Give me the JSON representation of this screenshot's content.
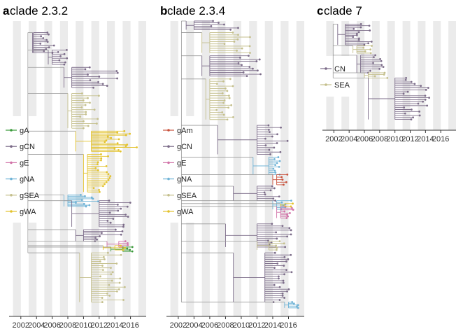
{
  "colors": {
    "gA": "#3a9a3a",
    "gAm": "#c9523c",
    "gCN": "#7b6b88",
    "gE": "#d173a8",
    "gNA": "#6fb3d6",
    "gSEA": "#c4bf8c",
    "gWA": "#e3c22c",
    "CN": "#7b6b88",
    "SEA": "#c4bf8c",
    "band": "#ebebeb",
    "stem": "#9a9a9a"
  },
  "chart_data": [
    {
      "type": "tree",
      "panel_letter": "a",
      "title": "clade 2.3.2",
      "x_axis": {
        "ticks": [
          "2002",
          "2004",
          "2006",
          "2008",
          "2010",
          "2012",
          "2014",
          "2016"
        ],
        "range": [
          2000.5,
          2018.0
        ]
      },
      "legend": {
        "placement": "left-middle",
        "entries": [
          {
            "label": "gA",
            "key": "gA"
          },
          {
            "label": "gCN",
            "key": "gCN"
          },
          {
            "label": "gE",
            "key": "gE"
          },
          {
            "label": "gNA",
            "key": "gNA"
          },
          {
            "label": "gSEA",
            "key": "gSEA"
          },
          {
            "label": "gWA",
            "key": "gWA"
          }
        ]
      },
      "clusters": [
        {
          "group": "gCN",
          "root": [
            2003.5,
            0.04
          ],
          "tips_from": 0.04,
          "tips_to": 0.11,
          "t_min": 2003.6,
          "t_max": 2006.5,
          "n": 12
        },
        {
          "group": "gCN",
          "root": [
            2005.5,
            0.1
          ],
          "tips_from": 0.1,
          "tips_to": 0.15,
          "t_min": 2006.0,
          "t_max": 2008.5,
          "n": 8
        },
        {
          "group": "gCN",
          "root": [
            2007.5,
            0.16
          ],
          "tips_from": 0.16,
          "tips_to": 0.23,
          "t_min": 2008.5,
          "t_max": 2014.5,
          "n": 12
        },
        {
          "group": "gSEA",
          "root": [
            2008.0,
            0.25
          ],
          "tips_from": 0.25,
          "tips_to": 0.37,
          "t_min": 2008.5,
          "t_max": 2012.0,
          "n": 16
        },
        {
          "group": "gWA",
          "root": [
            2009.0,
            0.38
          ],
          "tips_from": 0.38,
          "tips_to": 0.45,
          "t_min": 2011.0,
          "t_max": 2017.0,
          "n": 16
        },
        {
          "group": "gWA",
          "root": [
            2010.0,
            0.46
          ],
          "tips_from": 0.46,
          "tips_to": 0.59,
          "t_min": 2010.5,
          "t_max": 2013.5,
          "n": 20
        },
        {
          "group": "gNA",
          "root": [
            2007.5,
            0.6
          ],
          "tips_from": 0.6,
          "tips_to": 0.64,
          "t_min": 2008.0,
          "t_max": 2012.0,
          "n": 10
        },
        {
          "group": "gCN",
          "root": [
            2008.5,
            0.62
          ],
          "tips_from": 0.62,
          "tips_to": 0.71,
          "t_min": 2012.0,
          "t_max": 2016.0,
          "n": 14
        },
        {
          "group": "gCN",
          "root": [
            2009.0,
            0.72
          ],
          "tips_from": 0.72,
          "tips_to": 0.76,
          "t_min": 2010.0,
          "t_max": 2015.5,
          "n": 8
        },
        {
          "group": "gE",
          "root": [
            2013.0,
            0.76
          ],
          "tips_from": 0.76,
          "tips_to": 0.78,
          "t_min": 2014.5,
          "t_max": 2015.8,
          "n": 4
        },
        {
          "group": "gA",
          "root": [
            2013.5,
            0.78
          ],
          "tips_from": 0.78,
          "tips_to": 0.795,
          "t_min": 2015.0,
          "t_max": 2017.0,
          "n": 4
        },
        {
          "group": "gWA",
          "root": [
            2012.5,
            0.775
          ],
          "tips_from": 0.775,
          "tips_to": 0.79,
          "t_min": 2014.0,
          "t_max": 2016.5,
          "n": 3
        },
        {
          "group": "gSEA",
          "root": [
            2009.5,
            0.8
          ],
          "tips_from": 0.8,
          "tips_to": 0.97,
          "t_min": 2011.0,
          "t_max": 2015.5,
          "n": 24
        }
      ]
    },
    {
      "type": "tree",
      "panel_letter": "b",
      "title": "clade 2.3.4",
      "x_axis": {
        "ticks": [
          "2002",
          "2004",
          "2006",
          "2008",
          "2010",
          "2012",
          "2014",
          "2016"
        ],
        "range": [
          2000.5,
          2018.0
        ]
      },
      "legend": {
        "placement": "left-middle",
        "entries": [
          {
            "label": "gAm",
            "key": "gAm"
          },
          {
            "label": "gCN",
            "key": "gCN"
          },
          {
            "label": "gE",
            "key": "gE"
          },
          {
            "label": "gNA",
            "key": "gNA"
          },
          {
            "label": "gSEA",
            "key": "gSEA"
          },
          {
            "label": "gWA",
            "key": "gWA"
          }
        ]
      },
      "clusters": [
        {
          "group": "gCN",
          "root": [
            2003.0,
            0.0
          ],
          "tips_from": 0.0,
          "tips_to": 0.03,
          "t_min": 2004.0,
          "t_max": 2012.0,
          "n": 6
        },
        {
          "group": "gSEA",
          "root": [
            2005.0,
            0.04
          ],
          "tips_from": 0.04,
          "tips_to": 0.11,
          "t_min": 2006.0,
          "t_max": 2011.5,
          "n": 10
        },
        {
          "group": "gCN",
          "root": [
            2005.0,
            0.12
          ],
          "tips_from": 0.12,
          "tips_to": 0.19,
          "t_min": 2006.0,
          "t_max": 2012.5,
          "n": 12
        },
        {
          "group": "gSEA",
          "root": [
            2005.5,
            0.2
          ],
          "tips_from": 0.2,
          "tips_to": 0.34,
          "t_min": 2006.0,
          "t_max": 2009.0,
          "n": 18
        },
        {
          "group": "gCN",
          "root": [
            2007.0,
            0.36
          ],
          "tips_from": 0.36,
          "tips_to": 0.46,
          "t_min": 2012.0,
          "t_max": 2016.0,
          "n": 14
        },
        {
          "group": "gNA",
          "root": [
            2011.5,
            0.47
          ],
          "tips_from": 0.47,
          "tips_to": 0.53,
          "t_min": 2013.5,
          "t_max": 2015.0,
          "n": 10
        },
        {
          "group": "gAm",
          "root": [
            2014.0,
            0.53
          ],
          "tips_from": 0.53,
          "tips_to": 0.565,
          "t_min": 2014.5,
          "t_max": 2016.5,
          "n": 5
        },
        {
          "group": "gCN",
          "root": [
            2009.0,
            0.57
          ],
          "tips_from": 0.57,
          "tips_to": 0.62,
          "t_min": 2012.0,
          "t_max": 2015.5,
          "n": 8
        },
        {
          "group": "gNA",
          "root": [
            2014.0,
            0.62
          ],
          "tips_from": 0.62,
          "tips_to": 0.65,
          "t_min": 2014.5,
          "t_max": 2016.5,
          "n": 6
        },
        {
          "group": "gE",
          "root": [
            2014.5,
            0.64
          ],
          "tips_from": 0.64,
          "tips_to": 0.68,
          "t_min": 2015.0,
          "t_max": 2016.8,
          "n": 8
        },
        {
          "group": "gWA",
          "root": [
            2015.0,
            0.63
          ],
          "tips_from": 0.63,
          "tips_to": 0.64,
          "t_min": 2015.5,
          "t_max": 2016.8,
          "n": 2
        },
        {
          "group": "gCN",
          "root": [
            2008.0,
            0.7
          ],
          "tips_from": 0.7,
          "tips_to": 0.78,
          "t_min": 2012.0,
          "t_max": 2016.5,
          "n": 12
        },
        {
          "group": "gSEA",
          "root": [
            2012.0,
            0.76
          ],
          "tips_from": 0.76,
          "tips_to": 0.79,
          "t_min": 2013.5,
          "t_max": 2015.5,
          "n": 5
        },
        {
          "group": "gCN",
          "root": [
            2009.0,
            0.8
          ],
          "tips_from": 0.8,
          "tips_to": 0.97,
          "t_min": 2013.0,
          "t_max": 2016.5,
          "n": 24
        },
        {
          "group": "gNA",
          "root": [
            2015.5,
            0.97
          ],
          "tips_from": 0.97,
          "tips_to": 0.99,
          "t_min": 2016.0,
          "t_max": 2017.3,
          "n": 5
        }
      ]
    },
    {
      "type": "tree",
      "panel_letter": "c",
      "title": "clade 7",
      "x_axis": {
        "ticks": [
          "2002",
          "2004",
          "2006",
          "2008",
          "2010",
          "2012",
          "2014",
          "2016"
        ],
        "range": [
          2000.5,
          2018.0
        ]
      },
      "legend": {
        "placement": "left-middle",
        "entries": [
          {
            "label": "CN",
            "key": "CN"
          },
          {
            "label": "SEA",
            "key": "SEA"
          }
        ]
      },
      "clusters": [
        {
          "group": "CN",
          "root": [
            2002.5,
            0.03
          ],
          "tips_from": 0.03,
          "tips_to": 0.23,
          "t_min": 2003.5,
          "t_max": 2007.0,
          "n": 14
        },
        {
          "group": "SEA",
          "root": [
            2004.5,
            0.24
          ],
          "tips_from": 0.24,
          "tips_to": 0.31,
          "t_min": 2005.0,
          "t_max": 2008.0,
          "n": 5
        },
        {
          "group": "CN",
          "root": [
            2005.0,
            0.33
          ],
          "tips_from": 0.33,
          "tips_to": 0.5,
          "t_min": 2005.5,
          "t_max": 2009.5,
          "n": 10
        },
        {
          "group": "SEA",
          "root": [
            2006.0,
            0.5
          ],
          "tips_from": 0.5,
          "tips_to": 0.55,
          "t_min": 2006.5,
          "t_max": 2010.0,
          "n": 4
        },
        {
          "group": "CN",
          "root": [
            2006.5,
            0.55
          ],
          "tips_from": 0.55,
          "tips_to": 0.95,
          "t_min": 2010.0,
          "t_max": 2014.5,
          "n": 22
        }
      ]
    }
  ]
}
